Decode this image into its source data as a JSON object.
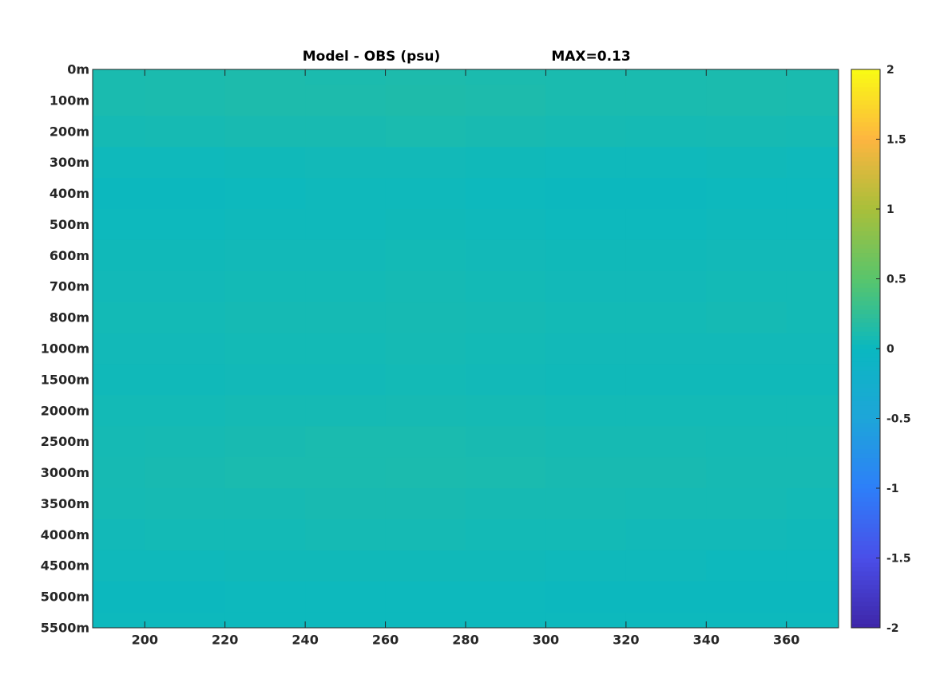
{
  "chart_data": {
    "type": "heatmap",
    "title": "Model - OBS (psu)",
    "annotation": "MAX=0.13",
    "x": [
      190,
      210,
      230,
      250,
      270,
      290,
      310,
      330,
      350,
      370
    ],
    "xlim": [
      187,
      373
    ],
    "xticks": [
      200,
      220,
      240,
      260,
      280,
      300,
      320,
      340,
      360
    ],
    "y": [
      "0m",
      "100m",
      "200m",
      "300m",
      "400m",
      "500m",
      "600m",
      "700m",
      "800m",
      "1000m",
      "1500m",
      "2000m",
      "2500m",
      "3000m",
      "3500m",
      "4000m",
      "4500m",
      "5000m",
      "5500m"
    ],
    "values": [
      [
        0.1,
        0.11,
        0.12,
        0.11,
        0.12,
        0.11,
        0.1,
        0.1,
        0.11,
        0.1
      ],
      [
        0.1,
        0.11,
        0.12,
        0.12,
        0.13,
        0.12,
        0.1,
        0.1,
        0.11,
        0.1
      ],
      [
        0.07,
        0.08,
        0.09,
        0.09,
        0.1,
        0.09,
        0.08,
        0.07,
        0.08,
        0.07
      ],
      [
        0.03,
        0.03,
        0.04,
        0.05,
        0.05,
        0.04,
        0.03,
        0.03,
        0.04,
        0.03
      ],
      [
        0.01,
        0.01,
        0.02,
        0.03,
        0.03,
        0.02,
        0.01,
        0.01,
        0.02,
        0.02
      ],
      [
        0.02,
        0.02,
        0.03,
        0.03,
        0.04,
        0.03,
        0.02,
        0.02,
        0.03,
        0.03
      ],
      [
        0.04,
        0.04,
        0.05,
        0.05,
        0.06,
        0.05,
        0.04,
        0.04,
        0.05,
        0.05
      ],
      [
        0.05,
        0.05,
        0.06,
        0.06,
        0.07,
        0.06,
        0.05,
        0.05,
        0.06,
        0.06
      ],
      [
        0.06,
        0.06,
        0.07,
        0.07,
        0.08,
        0.07,
        0.06,
        0.06,
        0.07,
        0.06
      ],
      [
        0.05,
        0.05,
        0.06,
        0.06,
        0.07,
        0.06,
        0.05,
        0.05,
        0.05,
        0.05
      ],
      [
        0.04,
        0.04,
        0.05,
        0.05,
        0.06,
        0.05,
        0.04,
        0.04,
        0.04,
        0.04
      ],
      [
        0.06,
        0.06,
        0.07,
        0.07,
        0.08,
        0.07,
        0.06,
        0.06,
        0.06,
        0.06
      ],
      [
        0.07,
        0.08,
        0.09,
        0.1,
        0.1,
        0.09,
        0.08,
        0.08,
        0.07,
        0.07
      ],
      [
        0.08,
        0.09,
        0.1,
        0.1,
        0.11,
        0.1,
        0.09,
        0.09,
        0.08,
        0.08
      ],
      [
        0.07,
        0.08,
        0.08,
        0.09,
        0.09,
        0.08,
        0.08,
        0.07,
        0.07,
        0.06
      ],
      [
        0.05,
        0.06,
        0.06,
        0.07,
        0.07,
        0.06,
        0.06,
        0.05,
        0.05,
        0.04
      ],
      [
        0.03,
        0.03,
        0.04,
        0.04,
        0.04,
        0.04,
        0.03,
        0.03,
        0.02,
        0.02
      ],
      [
        0.01,
        0.01,
        0.02,
        0.02,
        0.02,
        0.02,
        0.01,
        0.01,
        0.01,
        0.01
      ],
      [
        0.02,
        0.02,
        0.02,
        0.02,
        0.02,
        0.02,
        0.02,
        0.02,
        0.02,
        0.02
      ]
    ],
    "clim": [
      -2,
      2
    ],
    "cticks": [
      -2,
      -1.5,
      -1,
      -0.5,
      0,
      0.5,
      1,
      1.5,
      2
    ],
    "colormap": [
      "#3e26a8",
      "#4a4ee8",
      "#2d7ff9",
      "#1ea5d9",
      "#0ab8c0",
      "#58c56c",
      "#a8bf3a",
      "#fdb540",
      "#f9fb14"
    ]
  }
}
